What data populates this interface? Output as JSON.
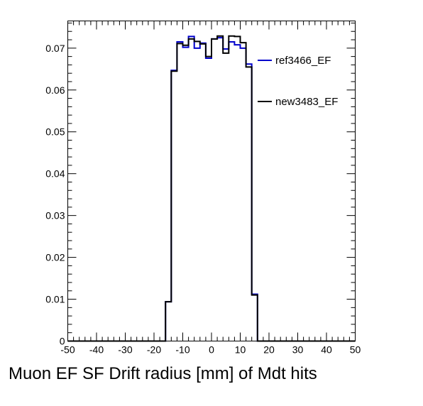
{
  "chart_data": {
    "type": "line",
    "title": "",
    "xlabel": "Muon EF SF Drift radius [mm] of Mdt hits",
    "ylabel": "",
    "xlim": [
      -50,
      50
    ],
    "ylim": [
      0,
      0.0765
    ],
    "grid": false,
    "legend_position": "right",
    "x_ticks": [
      -50,
      -40,
      -30,
      -20,
      -10,
      0,
      10,
      20,
      30,
      40,
      50
    ],
    "x_tick_labels": [
      "-50",
      "-40",
      "-30",
      "-20",
      "-10",
      "0",
      "10",
      "20",
      "30",
      "40",
      "50"
    ],
    "y_ticks": [
      0,
      0.01,
      0.02,
      0.03,
      0.04,
      0.05,
      0.06,
      0.07
    ],
    "y_tick_labels": [
      "0",
      "0.01",
      "0.02",
      "0.03",
      "0.04",
      "0.05",
      "0.06",
      "0.07"
    ],
    "bin_edges": [
      -50,
      -48,
      -46,
      -44,
      -42,
      -40,
      -38,
      -36,
      -34,
      -32,
      -30,
      -28,
      -26,
      -24,
      -22,
      -20,
      -18,
      -16,
      -14,
      -12,
      -10,
      -8,
      -6,
      -4,
      -2,
      0,
      2,
      4,
      6,
      8,
      10,
      12,
      14,
      16,
      18,
      20,
      22,
      24,
      26,
      28,
      30,
      32,
      34,
      36,
      38,
      40,
      42,
      44,
      46,
      48,
      50
    ],
    "series": [
      {
        "name": "ref3466_EF",
        "color": "#0000cc",
        "values": [
          0,
          0,
          0,
          0,
          0,
          0,
          0,
          0,
          0,
          0,
          0,
          0,
          0,
          0,
          0,
          0,
          0,
          0.0094,
          0.0647,
          0.0715,
          0.0702,
          0.0728,
          0.07,
          0.0712,
          0.0676,
          0.0722,
          0.0725,
          0.0698,
          0.0715,
          0.0708,
          0.07,
          0.0662,
          0.0112,
          0,
          0,
          0,
          0,
          0,
          0,
          0,
          0,
          0,
          0,
          0,
          0,
          0,
          0,
          0,
          0,
          0
        ]
      },
      {
        "name": "new3483_EF",
        "color": "#000000",
        "values": [
          0,
          0,
          0,
          0,
          0,
          0,
          0,
          0,
          0,
          0,
          0,
          0,
          0,
          0,
          0,
          0,
          0,
          0.0094,
          0.0645,
          0.0711,
          0.0707,
          0.0722,
          0.0716,
          0.071,
          0.068,
          0.0722,
          0.0729,
          0.0688,
          0.0729,
          0.0728,
          0.0713,
          0.0655,
          0.011,
          0,
          0,
          0,
          0,
          0,
          0,
          0,
          0,
          0,
          0,
          0,
          0,
          0,
          0,
          0,
          0,
          0
        ]
      }
    ]
  }
}
